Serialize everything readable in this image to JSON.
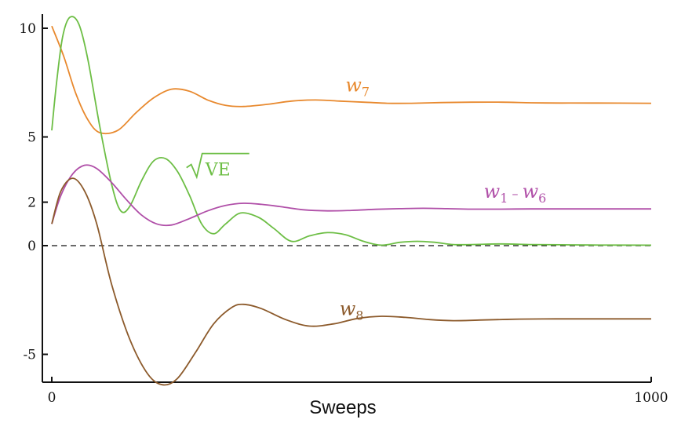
{
  "chart_data": {
    "type": "line",
    "title": "",
    "xlabel": "Sweeps",
    "ylabel": "",
    "xlim": [
      0,
      1000
    ],
    "ylim": [
      -7.5,
      10.5
    ],
    "x_ticks": [
      {
        "value": 0,
        "label": "0"
      },
      {
        "value": 1000,
        "label": "1000"
      }
    ],
    "y_ticks": [
      {
        "value": 10,
        "label": "10"
      },
      {
        "value": 5,
        "label": "5"
      },
      {
        "value": 2,
        "label": "2"
      },
      {
        "value": 0,
        "label": "0"
      },
      {
        "value": -5,
        "label": "-5"
      }
    ],
    "reference_line": {
      "y": 0,
      "style": "dashed"
    },
    "series": [
      {
        "key": "w7",
        "label": {
          "base": "w",
          "sub": "7"
        },
        "color": "#E8892E",
        "points": [
          [
            0,
            10.1
          ],
          [
            20,
            8.7
          ],
          [
            40,
            7.0
          ],
          [
            60,
            5.8
          ],
          [
            80,
            5.2
          ],
          [
            110,
            5.3
          ],
          [
            140,
            6.1
          ],
          [
            170,
            6.8
          ],
          [
            200,
            7.2
          ],
          [
            230,
            7.1
          ],
          [
            260,
            6.7
          ],
          [
            290,
            6.45
          ],
          [
            320,
            6.4
          ],
          [
            360,
            6.5
          ],
          [
            400,
            6.65
          ],
          [
            440,
            6.7
          ],
          [
            480,
            6.65
          ],
          [
            520,
            6.6
          ],
          [
            560,
            6.55
          ],
          [
            600,
            6.55
          ],
          [
            650,
            6.58
          ],
          [
            700,
            6.6
          ],
          [
            750,
            6.6
          ],
          [
            800,
            6.57
          ],
          [
            850,
            6.56
          ],
          [
            900,
            6.56
          ],
          [
            1000,
            6.55
          ]
        ]
      },
      {
        "key": "sqrtVE",
        "label": {
          "text": "VE",
          "radical": true
        },
        "color": "#6DBE45",
        "points": [
          [
            0,
            5.3
          ],
          [
            8,
            7.5
          ],
          [
            18,
            9.6
          ],
          [
            30,
            10.5
          ],
          [
            45,
            10.2
          ],
          [
            60,
            8.6
          ],
          [
            80,
            5.5
          ],
          [
            100,
            2.8
          ],
          [
            115,
            1.6
          ],
          [
            130,
            1.8
          ],
          [
            150,
            3.0
          ],
          [
            170,
            3.9
          ],
          [
            190,
            4.0
          ],
          [
            210,
            3.4
          ],
          [
            230,
            2.3
          ],
          [
            250,
            1.0
          ],
          [
            270,
            0.55
          ],
          [
            290,
            1.0
          ],
          [
            315,
            1.5
          ],
          [
            345,
            1.3
          ],
          [
            370,
            0.8
          ],
          [
            400,
            0.2
          ],
          [
            430,
            0.45
          ],
          [
            460,
            0.6
          ],
          [
            490,
            0.5
          ],
          [
            520,
            0.2
          ],
          [
            550,
            0.02
          ],
          [
            580,
            0.15
          ],
          [
            610,
            0.2
          ],
          [
            640,
            0.15
          ],
          [
            670,
            0.05
          ],
          [
            700,
            0.05
          ],
          [
            750,
            0.08
          ],
          [
            800,
            0.05
          ],
          [
            850,
            0.04
          ],
          [
            900,
            0.03
          ],
          [
            1000,
            0.02
          ]
        ]
      },
      {
        "key": "w1-w6",
        "label": {
          "base": "w",
          "sub": "1",
          "sep": "–",
          "base2": "w",
          "sub2": "6"
        },
        "color": "#B04FA8",
        "points": [
          [
            0,
            1.0
          ],
          [
            15,
            2.3
          ],
          [
            35,
            3.3
          ],
          [
            55,
            3.7
          ],
          [
            75,
            3.55
          ],
          [
            100,
            2.9
          ],
          [
            125,
            2.1
          ],
          [
            150,
            1.4
          ],
          [
            175,
            1.0
          ],
          [
            200,
            0.95
          ],
          [
            230,
            1.25
          ],
          [
            260,
            1.6
          ],
          [
            290,
            1.85
          ],
          [
            320,
            1.95
          ],
          [
            350,
            1.9
          ],
          [
            380,
            1.8
          ],
          [
            420,
            1.65
          ],
          [
            460,
            1.6
          ],
          [
            500,
            1.62
          ],
          [
            540,
            1.67
          ],
          [
            580,
            1.7
          ],
          [
            620,
            1.72
          ],
          [
            660,
            1.7
          ],
          [
            700,
            1.68
          ],
          [
            750,
            1.68
          ],
          [
            800,
            1.69
          ],
          [
            850,
            1.69
          ],
          [
            900,
            1.69
          ],
          [
            1000,
            1.69
          ]
        ]
      },
      {
        "key": "w8",
        "label": {
          "base": "w",
          "sub": "8"
        },
        "color": "#8C5A2B",
        "points": [
          [
            0,
            1.0
          ],
          [
            15,
            2.5
          ],
          [
            35,
            3.1
          ],
          [
            55,
            2.5
          ],
          [
            75,
            1.0
          ],
          [
            100,
            -1.8
          ],
          [
            130,
            -4.3
          ],
          [
            160,
            -5.9
          ],
          [
            185,
            -6.4
          ],
          [
            210,
            -6.1
          ],
          [
            240,
            -4.9
          ],
          [
            270,
            -3.6
          ],
          [
            300,
            -2.85
          ],
          [
            320,
            -2.7
          ],
          [
            350,
            -2.9
          ],
          [
            390,
            -3.4
          ],
          [
            430,
            -3.7
          ],
          [
            470,
            -3.6
          ],
          [
            510,
            -3.35
          ],
          [
            550,
            -3.25
          ],
          [
            590,
            -3.3
          ],
          [
            630,
            -3.4
          ],
          [
            670,
            -3.45
          ],
          [
            720,
            -3.42
          ],
          [
            780,
            -3.38
          ],
          [
            840,
            -3.37
          ],
          [
            900,
            -3.37
          ],
          [
            1000,
            -3.37
          ]
        ]
      }
    ],
    "series_label_positions": [
      {
        "key": "w7",
        "x": 490,
        "y": 7.1
      },
      {
        "key": "sqrtVE",
        "x": 230,
        "y": 3.3
      },
      {
        "key": "w1-w6",
        "x": 825,
        "y": 2.2
      },
      {
        "key": "w8",
        "x": 480,
        "y": -3.2
      }
    ]
  }
}
